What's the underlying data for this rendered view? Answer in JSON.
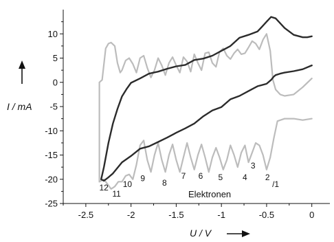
{
  "chart_data": {
    "type": "line",
    "title": "",
    "xlabel": "U / V",
    "ylabel": "I / mA",
    "xlim": [
      -2.75,
      0.2
    ],
    "ylim": [
      -25,
      15
    ],
    "x_ticks": [
      -2.5,
      -2.0,
      -1.5,
      -1.0,
      -0.5,
      0.0
    ],
    "x_tick_labels": [
      "-2.5",
      "-2",
      "-1.5",
      "-1",
      "-0.5",
      "0"
    ],
    "y_ticks": [
      -25,
      -20,
      -15,
      -10,
      -5,
      0,
      5,
      10
    ],
    "y_tick_labels": [
      "-25",
      "-20",
      "-15",
      "-10",
      "-5",
      "0",
      "5",
      "10"
    ],
    "grid": false,
    "legend": null,
    "annotation": "Elektronen",
    "peak_labels": [
      {
        "text": "12",
        "x": -2.3,
        "y": -22.3
      },
      {
        "text": "11",
        "x": -2.16,
        "y": -23.6
      },
      {
        "text": "10",
        "x": -2.04,
        "y": -21.6
      },
      {
        "text": "9",
        "x": -1.87,
        "y": -20.4
      },
      {
        "text": "8",
        "x": -1.63,
        "y": -21.3
      },
      {
        "text": "7",
        "x": -1.42,
        "y": -19.9
      },
      {
        "text": "6",
        "x": -1.23,
        "y": -19.9
      },
      {
        "text": "5",
        "x": -1.01,
        "y": -20.2
      },
      {
        "text": "4",
        "x": -0.74,
        "y": -20.2
      },
      {
        "text": "3",
        "x": -0.65,
        "y": -17.8
      },
      {
        "text": "2",
        "x": -0.49,
        "y": -20.2
      },
      {
        "text": "/1",
        "x": -0.4,
        "y": -21.6
      }
    ],
    "series": [
      {
        "color": "#2b2b2b",
        "style": "solid",
        "x": [
          0.0,
          -0.05,
          -0.1,
          -0.2,
          -0.3,
          -0.4,
          -0.45,
          -0.5,
          -0.55,
          -0.6,
          -0.7,
          -0.8,
          -0.9,
          -1.0,
          -1.1,
          -1.2,
          -1.3,
          -1.4,
          -1.5,
          -1.6,
          -1.7,
          -1.8,
          -1.9,
          -2.0,
          -2.05,
          -2.1,
          -2.15,
          -2.2,
          -2.25,
          -2.3,
          -2.33,
          -2.3,
          -2.25,
          -2.2,
          -2.1,
          -2.0,
          -1.9,
          -1.8,
          -1.7,
          -1.6,
          -1.5,
          -1.4,
          -1.3,
          -1.2,
          -1.1,
          -1.0,
          -0.9,
          -0.8,
          -0.7,
          -0.6,
          -0.5,
          -0.45,
          -0.42,
          -0.4,
          -0.35,
          -0.3,
          -0.2,
          -0.1,
          0.0
        ],
        "y": [
          9.5,
          9.3,
          9.3,
          9.8,
          11.2,
          13.2,
          13.5,
          12.5,
          11.5,
          10.5,
          9.8,
          9.2,
          7.5,
          6.5,
          5.5,
          4.9,
          4.6,
          3.6,
          3.3,
          2.8,
          2.2,
          1.8,
          0.8,
          -0.1,
          -1.4,
          -2.9,
          -5.5,
          -8.5,
          -12.5,
          -17.5,
          -20.0,
          -20.3,
          -19.6,
          -18.8,
          -16.5,
          -15.2,
          -13.7,
          -13.2,
          -12.3,
          -11.4,
          -10.4,
          -9.5,
          -8.5,
          -7.0,
          -5.8,
          -5.1,
          -3.5,
          -2.8,
          -1.8,
          -0.8,
          -0.3,
          0.5,
          1.2,
          1.5,
          1.8,
          2.0,
          2.3,
          2.7,
          3.5
        ]
      },
      {
        "color": "#bcbcbc",
        "style": "solid",
        "x": [
          -2.35,
          -2.35,
          -2.32,
          -2.28,
          -2.25,
          -2.22,
          -2.18,
          -2.15,
          -2.12,
          -2.1,
          -2.06,
          -2.02,
          -1.98,
          -1.94,
          -1.9,
          -1.86,
          -1.82,
          -1.78,
          -1.74,
          -1.7,
          -1.66,
          -1.62,
          -1.58,
          -1.54,
          -1.5,
          -1.46,
          -1.42,
          -1.38,
          -1.34,
          -1.3,
          -1.26,
          -1.22,
          -1.18,
          -1.14,
          -1.1,
          -1.06,
          -1.02,
          -0.98,
          -0.94,
          -0.9,
          -0.86,
          -0.82,
          -0.78,
          -0.74,
          -0.7,
          -0.66,
          -0.62,
          -0.58,
          -0.54,
          -0.5,
          -0.46,
          -0.43,
          -0.4,
          -0.35,
          -0.3,
          -0.2,
          -0.1,
          0.0
        ],
        "y": [
          -20.5,
          0.0,
          0.5,
          7.0,
          8.0,
          8.2,
          7.5,
          4.0,
          2.0,
          2.5,
          4.5,
          5.0,
          3.8,
          2.0,
          5.0,
          5.5,
          3.0,
          1.0,
          2.5,
          5.0,
          3.5,
          1.5,
          4.0,
          5.2,
          3.5,
          2.0,
          5.2,
          4.3,
          2.2,
          5.8,
          4.0,
          2.5,
          6.0,
          6.2,
          4.0,
          3.2,
          6.3,
          7.0,
          5.5,
          4.8,
          6.0,
          6.8,
          5.8,
          6.0,
          7.2,
          8.5,
          8.0,
          6.8,
          8.8,
          10.0,
          6.5,
          0.5,
          -1.5,
          -2.5,
          -2.8,
          -2.5,
          -1.0,
          0.8
        ]
      },
      {
        "color": "#bcbcbc",
        "style": "solid",
        "x": [
          0.0,
          -0.1,
          -0.2,
          -0.3,
          -0.38,
          -0.42,
          -0.46,
          -0.5,
          -0.54,
          -0.58,
          -0.62,
          -0.66,
          -0.7,
          -0.74,
          -0.78,
          -0.82,
          -0.86,
          -0.9,
          -0.94,
          -0.98,
          -1.02,
          -1.06,
          -1.1,
          -1.14,
          -1.18,
          -1.22,
          -1.26,
          -1.3,
          -1.34,
          -1.38,
          -1.42,
          -1.46,
          -1.5,
          -1.54,
          -1.58,
          -1.62,
          -1.66,
          -1.7,
          -1.74,
          -1.78,
          -1.82,
          -1.86,
          -1.9,
          -1.94,
          -1.98,
          -2.02,
          -2.06,
          -2.1,
          -2.14,
          -2.18,
          -2.22,
          -2.26,
          -2.3,
          -2.35
        ],
        "y": [
          -7.5,
          -7.8,
          -7.5,
          -7.5,
          -8.0,
          -11.5,
          -15.5,
          -18.0,
          -15.0,
          -13.0,
          -12.5,
          -14.5,
          -16.5,
          -13.0,
          -14.5,
          -17.5,
          -15.0,
          -13.0,
          -16.0,
          -18.0,
          -15.5,
          -13.5,
          -15.5,
          -18.5,
          -15.5,
          -12.8,
          -15.0,
          -18.0,
          -15.5,
          -12.5,
          -15.5,
          -18.5,
          -16.0,
          -12.8,
          -15.0,
          -18.5,
          -16.0,
          -12.5,
          -15.0,
          -18.5,
          -16.0,
          -12.0,
          -13.0,
          -17.0,
          -20.0,
          -19.0,
          -19.3,
          -20.5,
          -20.5,
          -21.5,
          -22.0,
          -21.0,
          -20.0,
          -20.5
        ]
      }
    ]
  }
}
